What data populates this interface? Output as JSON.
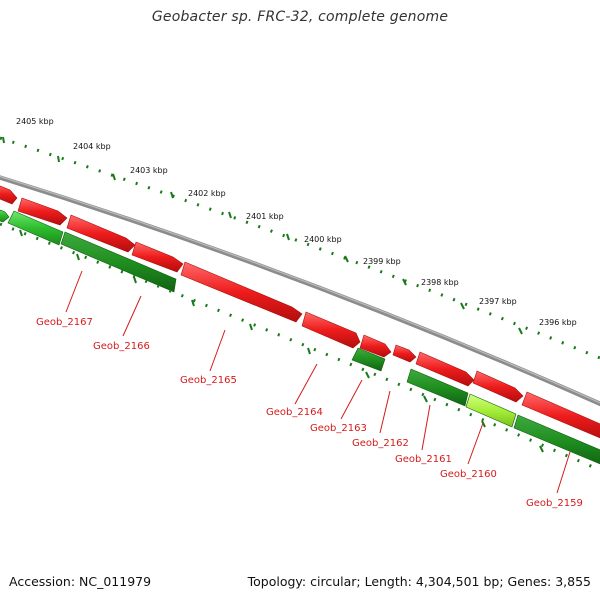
{
  "title": "Geobacter sp. FRC-32, complete genome",
  "footer": {
    "accession": "Accession: NC_011979",
    "summary": "Topology: circular; Length: 4,304,501 bp; Genes: 3,855"
  },
  "colors": {
    "backbone": "#8c8c8c",
    "forward_gene": "#ee1c1c",
    "reverse_gene": "#2ebd2e",
    "reverse_gene_dark": "#1f8f1f",
    "highlight_gene": "#9ee83a",
    "tick": "#1a7a1a",
    "label": "#d41b1b"
  },
  "kbp_ticks": [
    "2405 kbp",
    "2404 kbp",
    "2403 kbp",
    "2402 kbp",
    "2401 kbp",
    "2400 kbp",
    "2399 kbp",
    "2398 kbp",
    "2397 kbp",
    "2396 kbp"
  ],
  "gene_labels": [
    "Geob_2167",
    "Geob_2166",
    "Geob_2165",
    "Geob_2164",
    "Geob_2163",
    "Geob_2162",
    "Geob_2161",
    "Geob_2160",
    "Geob_2159"
  ]
}
